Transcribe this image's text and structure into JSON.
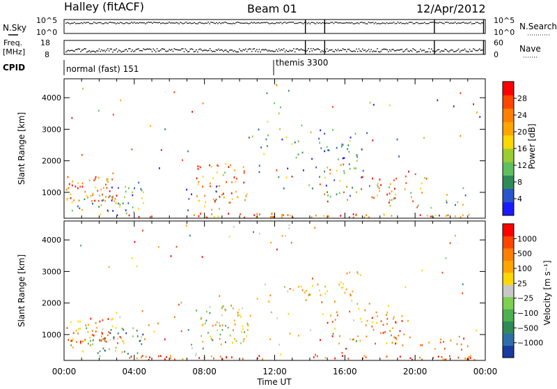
{
  "header": {
    "station": "Halley (fitACF)",
    "beam": "Beam 01",
    "date": "12/Apr/2012"
  },
  "panels": {
    "nsky": {
      "label": "N.Sky",
      "ticks": [
        "10^5",
        "10^0"
      ],
      "right_label": "N.Search",
      "right_ticks": [
        "10^5",
        "10^0"
      ]
    },
    "freq": {
      "label_line1": "Freq.",
      "label_line2": "[MHz]",
      "ticks": [
        "18",
        "8"
      ],
      "right_label": "Nave",
      "right_ticks": [
        "60",
        "0"
      ]
    },
    "cpid": {
      "label": "CPID",
      "segments": [
        "normal (fast) 151",
        "themis 3300"
      ]
    }
  },
  "chart_data": [
    {
      "type": "heatmap",
      "name": "Power",
      "ylabel": "Slant Range [km]",
      "xlabel": "Time UT",
      "ylim": [
        180,
        4600
      ],
      "xlim": [
        0,
        24
      ],
      "yticks": [
        1000,
        2000,
        3000,
        4000
      ],
      "xticks": [
        "00:00",
        "04:00",
        "08:00",
        "12:00",
        "16:00",
        "20:00",
        "00:00"
      ],
      "colorbar": {
        "label": "Power [dB]",
        "ticks": [
          "4",
          "8",
          "12",
          "16",
          "20",
          "24",
          "28"
        ],
        "colors": [
          "#1a1aff",
          "#2855c8",
          "#2e8b57",
          "#5fbf5f",
          "#9acd32",
          "#ffd700",
          "#ffa500",
          "#ff7f00",
          "#ff4500",
          "#ff0000"
        ]
      }
    },
    {
      "type": "heatmap",
      "name": "Velocity",
      "ylabel": "Slant Range [km]",
      "xlabel": "Time UT",
      "ylim": [
        180,
        4600
      ],
      "xlim": [
        0,
        24
      ],
      "yticks": [
        1000,
        2000,
        3000,
        4000
      ],
      "xticks": [
        "00:00",
        "04:00",
        "08:00",
        "12:00",
        "16:00",
        "20:00",
        "00:00"
      ],
      "colorbar": {
        "label": "Velocity [m s⁻¹]",
        "ticks": [
          "1000",
          "500",
          "100",
          "25",
          "−25",
          "−100",
          "−500",
          "−1000"
        ],
        "colors": [
          "#1a3aa0",
          "#2e6fa8",
          "#2e8b57",
          "#4caf50",
          "#7fd04f",
          "#c8c8c8",
          "#ffd700",
          "#ffa500",
          "#ff7f00",
          "#ff4500",
          "#ff0000"
        ]
      }
    }
  ]
}
